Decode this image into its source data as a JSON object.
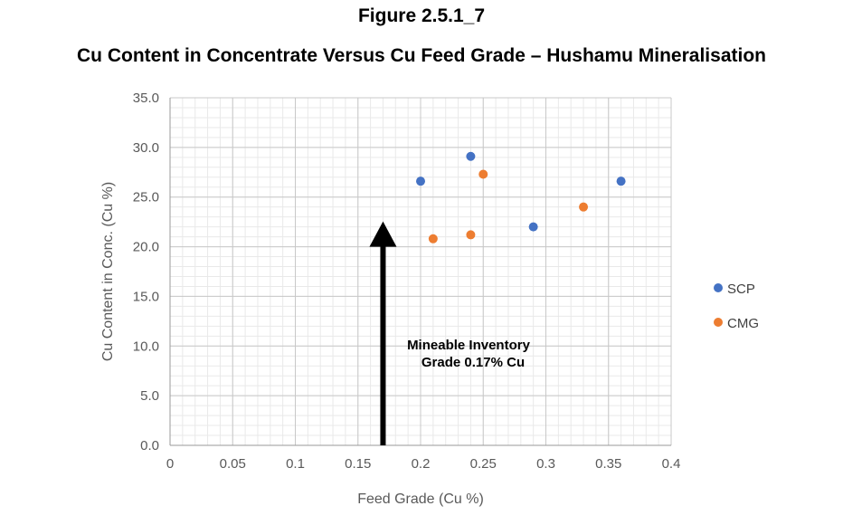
{
  "figure": {
    "number": "Figure 2.5.1_7",
    "title": "Cu Content in Concentrate Versus Cu Feed Grade – Hushamu Mineralisation"
  },
  "chart_data": {
    "type": "scatter",
    "xlabel": "Feed Grade (Cu %)",
    "ylabel": "Cu Content in Conc. (Cu %)",
    "xlim": [
      0,
      0.4
    ],
    "ylim": [
      0,
      35
    ],
    "x_ticks": [
      "0",
      "0.05",
      "0.1",
      "0.15",
      "0.2",
      "0.25",
      "0.3",
      "0.35",
      "0.4"
    ],
    "y_ticks": [
      "0.0",
      "5.0",
      "10.0",
      "15.0",
      "20.0",
      "25.0",
      "30.0",
      "35.0"
    ],
    "grid": true,
    "legend_position": "right",
    "series": [
      {
        "name": "SCP",
        "color": "#4472C4",
        "points": [
          {
            "x": 0.2,
            "y": 26.6
          },
          {
            "x": 0.24,
            "y": 29.1
          },
          {
            "x": 0.29,
            "y": 22.0
          },
          {
            "x": 0.36,
            "y": 26.6
          }
        ]
      },
      {
        "name": "CMG",
        "color": "#ED7D31",
        "points": [
          {
            "x": 0.21,
            "y": 20.8
          },
          {
            "x": 0.24,
            "y": 21.2
          },
          {
            "x": 0.25,
            "y": 27.3
          },
          {
            "x": 0.33,
            "y": 24.0
          }
        ]
      }
    ],
    "annotation": {
      "lines": [
        "Mineable Inventory",
        "Grade 0.17% Cu"
      ],
      "arrow_x": 0.17,
      "arrow_from_y": 0,
      "arrow_to_y": 22
    }
  }
}
